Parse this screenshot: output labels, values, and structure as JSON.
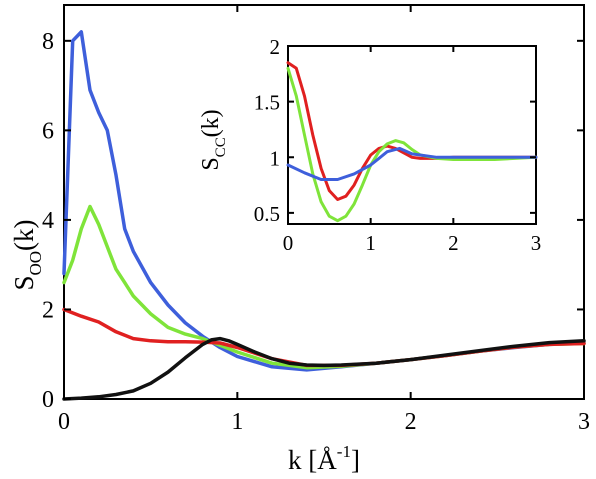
{
  "chart_data": [
    {
      "type": "line",
      "panel": "main",
      "xlabel_base": "k [Å",
      "xlabel_sup": "-1",
      "xlabel_end": "]",
      "ylabel_base": "S",
      "ylabel_sub": "OO",
      "ylabel_end": "(k)",
      "xlim": [
        0,
        3
      ],
      "ylim": [
        0,
        8.8
      ],
      "xticks": [
        "0",
        "1",
        "2",
        "3"
      ],
      "yticks": [
        "0",
        "2",
        "4",
        "6",
        "8"
      ],
      "grid": false,
      "series": [
        {
          "color": "#3e5fdb",
          "x": [
            0,
            0.05,
            0.1,
            0.15,
            0.2,
            0.25,
            0.3,
            0.35,
            0.4,
            0.5,
            0.6,
            0.7,
            0.8,
            0.9,
            1.0,
            1.2,
            1.4,
            1.6,
            1.8,
            2.0,
            2.2,
            2.4,
            2.6,
            2.8,
            3.0
          ],
          "y": [
            2.8,
            8.0,
            8.2,
            6.9,
            6.4,
            6.0,
            5.0,
            3.8,
            3.3,
            2.6,
            2.1,
            1.7,
            1.4,
            1.15,
            0.95,
            0.72,
            0.65,
            0.72,
            0.8,
            0.88,
            0.97,
            1.07,
            1.15,
            1.22,
            1.25
          ]
        },
        {
          "color": "#7fe43a",
          "x": [
            0,
            0.05,
            0.1,
            0.15,
            0.2,
            0.25,
            0.3,
            0.35,
            0.4,
            0.5,
            0.6,
            0.7,
            0.8,
            0.9,
            1.0,
            1.2,
            1.4,
            1.6,
            1.8,
            2.0,
            2.2,
            2.4,
            2.6,
            2.8,
            3.0
          ],
          "y": [
            2.6,
            3.1,
            3.8,
            4.3,
            3.9,
            3.4,
            2.9,
            2.6,
            2.3,
            1.9,
            1.6,
            1.45,
            1.35,
            1.2,
            1.05,
            0.8,
            0.7,
            0.73,
            0.8,
            0.88,
            0.97,
            1.07,
            1.16,
            1.22,
            1.24
          ]
        },
        {
          "color": "#e02020",
          "x": [
            0,
            0.1,
            0.2,
            0.3,
            0.4,
            0.5,
            0.6,
            0.7,
            0.8,
            0.9,
            1.0,
            1.2,
            1.4,
            1.6,
            1.8,
            2.0,
            2.2,
            2.4,
            2.6,
            2.8,
            3.0
          ],
          "y": [
            2.0,
            1.85,
            1.72,
            1.5,
            1.35,
            1.3,
            1.28,
            1.28,
            1.27,
            1.25,
            1.15,
            0.9,
            0.75,
            0.75,
            0.8,
            0.88,
            0.97,
            1.07,
            1.16,
            1.22,
            1.24
          ]
        },
        {
          "color": "#111111",
          "x": [
            0,
            0.1,
            0.2,
            0.3,
            0.4,
            0.5,
            0.6,
            0.7,
            0.8,
            0.85,
            0.9,
            0.95,
            1.0,
            1.1,
            1.2,
            1.3,
            1.4,
            1.5,
            1.6,
            1.8,
            2.0,
            2.2,
            2.4,
            2.6,
            2.8,
            3.0
          ],
          "y": [
            0,
            0.02,
            0.05,
            0.1,
            0.18,
            0.35,
            0.6,
            0.92,
            1.22,
            1.32,
            1.35,
            1.3,
            1.22,
            1.05,
            0.9,
            0.8,
            0.76,
            0.75,
            0.76,
            0.8,
            0.88,
            0.98,
            1.08,
            1.18,
            1.26,
            1.3
          ]
        }
      ]
    },
    {
      "type": "line",
      "panel": "inset",
      "xlabel_base": "",
      "ylabel_base": "S",
      "ylabel_sub": "CC",
      "ylabel_end": "(k)",
      "xlim": [
        0,
        3
      ],
      "ylim": [
        0.4,
        2.0
      ],
      "xticks": [
        "0",
        "1",
        "2",
        "3"
      ],
      "yticks": [
        "0.5",
        "1",
        "1.5",
        "2"
      ],
      "ytick_values": [
        0.5,
        1,
        1.5,
        2
      ],
      "grid": false,
      "series": [
        {
          "color": "#e02020",
          "x": [
            0,
            0.1,
            0.2,
            0.3,
            0.4,
            0.5,
            0.6,
            0.7,
            0.8,
            0.9,
            1.0,
            1.1,
            1.2,
            1.3,
            1.4,
            1.5,
            1.6,
            1.8,
            2.0,
            2.5,
            3.0
          ],
          "y": [
            1.85,
            1.8,
            1.55,
            1.2,
            0.9,
            0.7,
            0.62,
            0.65,
            0.75,
            0.9,
            1.02,
            1.08,
            1.1,
            1.08,
            1.04,
            1.0,
            0.99,
            0.99,
            1.0,
            1.0,
            1.0
          ]
        },
        {
          "color": "#7fe43a",
          "x": [
            0,
            0.1,
            0.2,
            0.3,
            0.4,
            0.5,
            0.6,
            0.7,
            0.8,
            0.9,
            1.0,
            1.1,
            1.2,
            1.3,
            1.4,
            1.5,
            1.6,
            1.8,
            2.0,
            2.5,
            3.0
          ],
          "y": [
            1.8,
            1.55,
            1.2,
            0.85,
            0.6,
            0.47,
            0.43,
            0.47,
            0.58,
            0.75,
            0.93,
            1.05,
            1.12,
            1.15,
            1.13,
            1.07,
            1.02,
            0.99,
            0.98,
            0.98,
            1.0
          ]
        },
        {
          "color": "#3e5fdb",
          "x": [
            0,
            0.2,
            0.4,
            0.6,
            0.8,
            1.0,
            1.2,
            1.35,
            1.5,
            1.8,
            2.0,
            2.5,
            3.0
          ],
          "y": [
            0.93,
            0.86,
            0.8,
            0.8,
            0.85,
            0.93,
            1.05,
            1.08,
            1.03,
            1.0,
            1.0,
            1.0,
            1.0
          ]
        }
      ]
    }
  ]
}
